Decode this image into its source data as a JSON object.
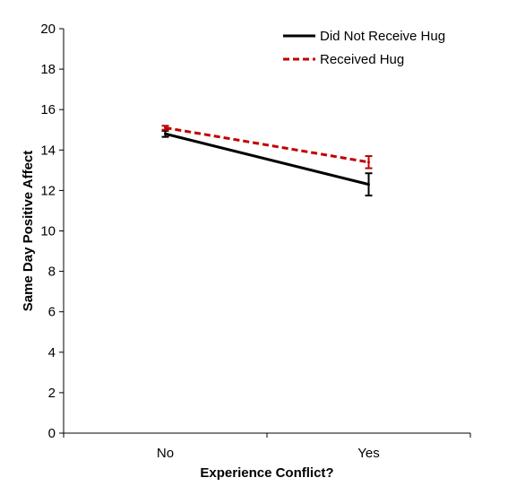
{
  "chart_data": {
    "type": "line",
    "title": "",
    "xlabel": "Experience Conflict?",
    "ylabel": "Same Day Positive Affect",
    "categories": [
      "No",
      "Yes"
    ],
    "ylim": [
      0,
      20
    ],
    "yticks": [
      0,
      2,
      4,
      6,
      8,
      10,
      12,
      14,
      16,
      18,
      20
    ],
    "ytick_labels": [
      "0",
      "2",
      "4",
      "6",
      "8",
      "10",
      "12",
      "14",
      "16",
      "18",
      "20"
    ],
    "grid": false,
    "legend_position": "top-right",
    "series": [
      {
        "name": "Did Not Receive Hug",
        "values": [
          14.8,
          12.3
        ],
        "error": [
          0.15,
          0.55
        ],
        "color": "#000000",
        "line_style": "solid"
      },
      {
        "name": "Received Hug",
        "values": [
          15.1,
          13.4
        ],
        "error": [
          0.1,
          0.3
        ],
        "color": "#c00000",
        "line_style": "dashed"
      }
    ]
  }
}
